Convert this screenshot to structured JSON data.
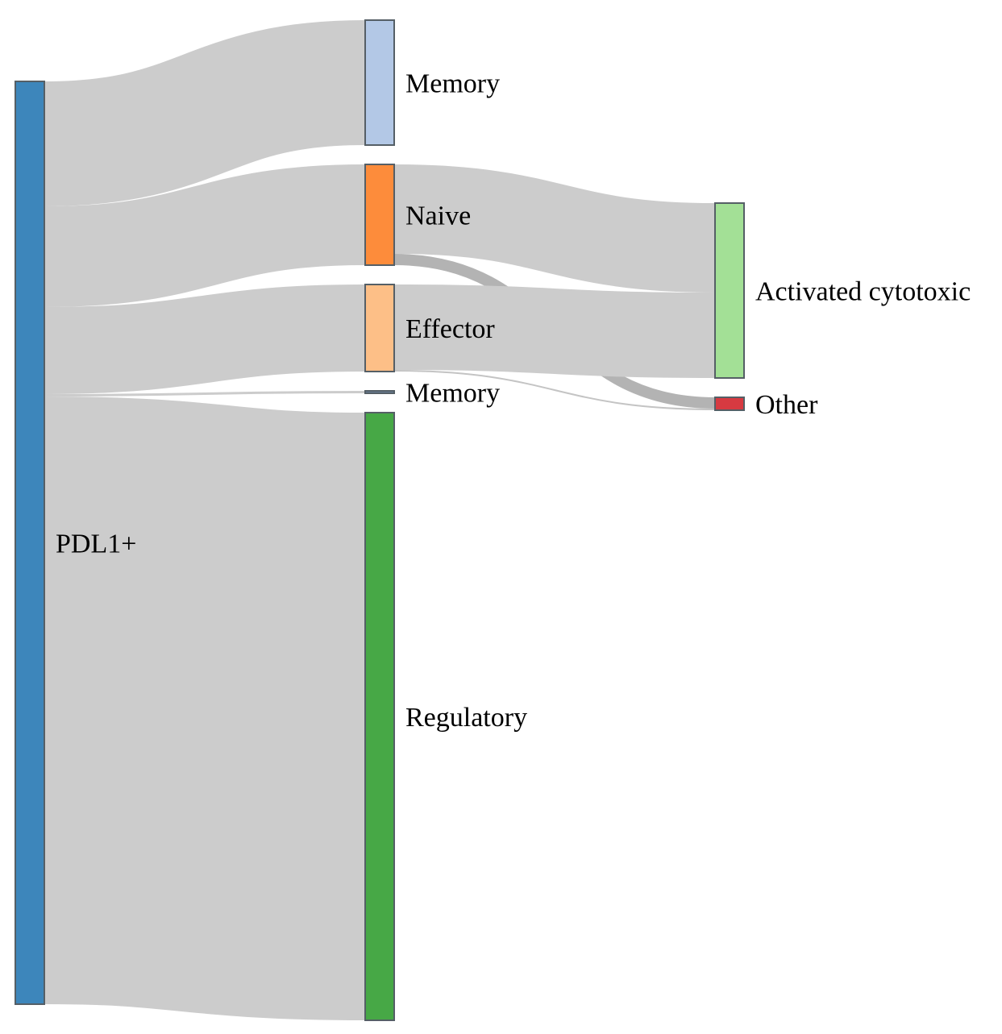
{
  "nodes": [
    {
      "id": "pdl1",
      "label": "PDL1+",
      "color": "#3d86bb",
      "column": 0
    },
    {
      "id": "memory1",
      "label": "Memory",
      "color": "#b3c8e6",
      "column": 1
    },
    {
      "id": "naive",
      "label": "Naive",
      "color": "#fd8c3b",
      "column": 1
    },
    {
      "id": "effector",
      "label": "Effector",
      "color": "#fdbf87",
      "column": 1
    },
    {
      "id": "memory2",
      "label": "Memory",
      "color": "#6a7f99",
      "column": 1
    },
    {
      "id": "regulatory",
      "label": "Regulatory",
      "color": "#47a846",
      "column": 1
    },
    {
      "id": "activated",
      "label": "Activated cytotoxic",
      "color": "#a3e096",
      "column": 2
    },
    {
      "id": "other",
      "label": "Other",
      "color": "#d73a41",
      "column": 2
    }
  ],
  "links": [
    {
      "source": "pdl1",
      "target": "memory1",
      "value": 155,
      "color": "#cccccc"
    },
    {
      "source": "pdl1",
      "target": "naive",
      "value": 125,
      "color": "#cccccc"
    },
    {
      "source": "pdl1",
      "target": "effector",
      "value": 108,
      "color": "#cccccc"
    },
    {
      "source": "pdl1",
      "target": "memory2",
      "value": 3,
      "color": "#cccccc"
    },
    {
      "source": "pdl1",
      "target": "regulatory",
      "value": 754,
      "color": "#cccccc"
    },
    {
      "source": "naive",
      "target": "activated",
      "value": 111,
      "color": "#cccccc"
    },
    {
      "source": "naive",
      "target": "other",
      "value": 14,
      "color": "#b3b3b3"
    },
    {
      "source": "effector",
      "target": "activated",
      "value": 106,
      "color": "#cccccc"
    },
    {
      "source": "effector",
      "target": "other",
      "value": 2,
      "color": "#c4c4c4"
    }
  ]
}
